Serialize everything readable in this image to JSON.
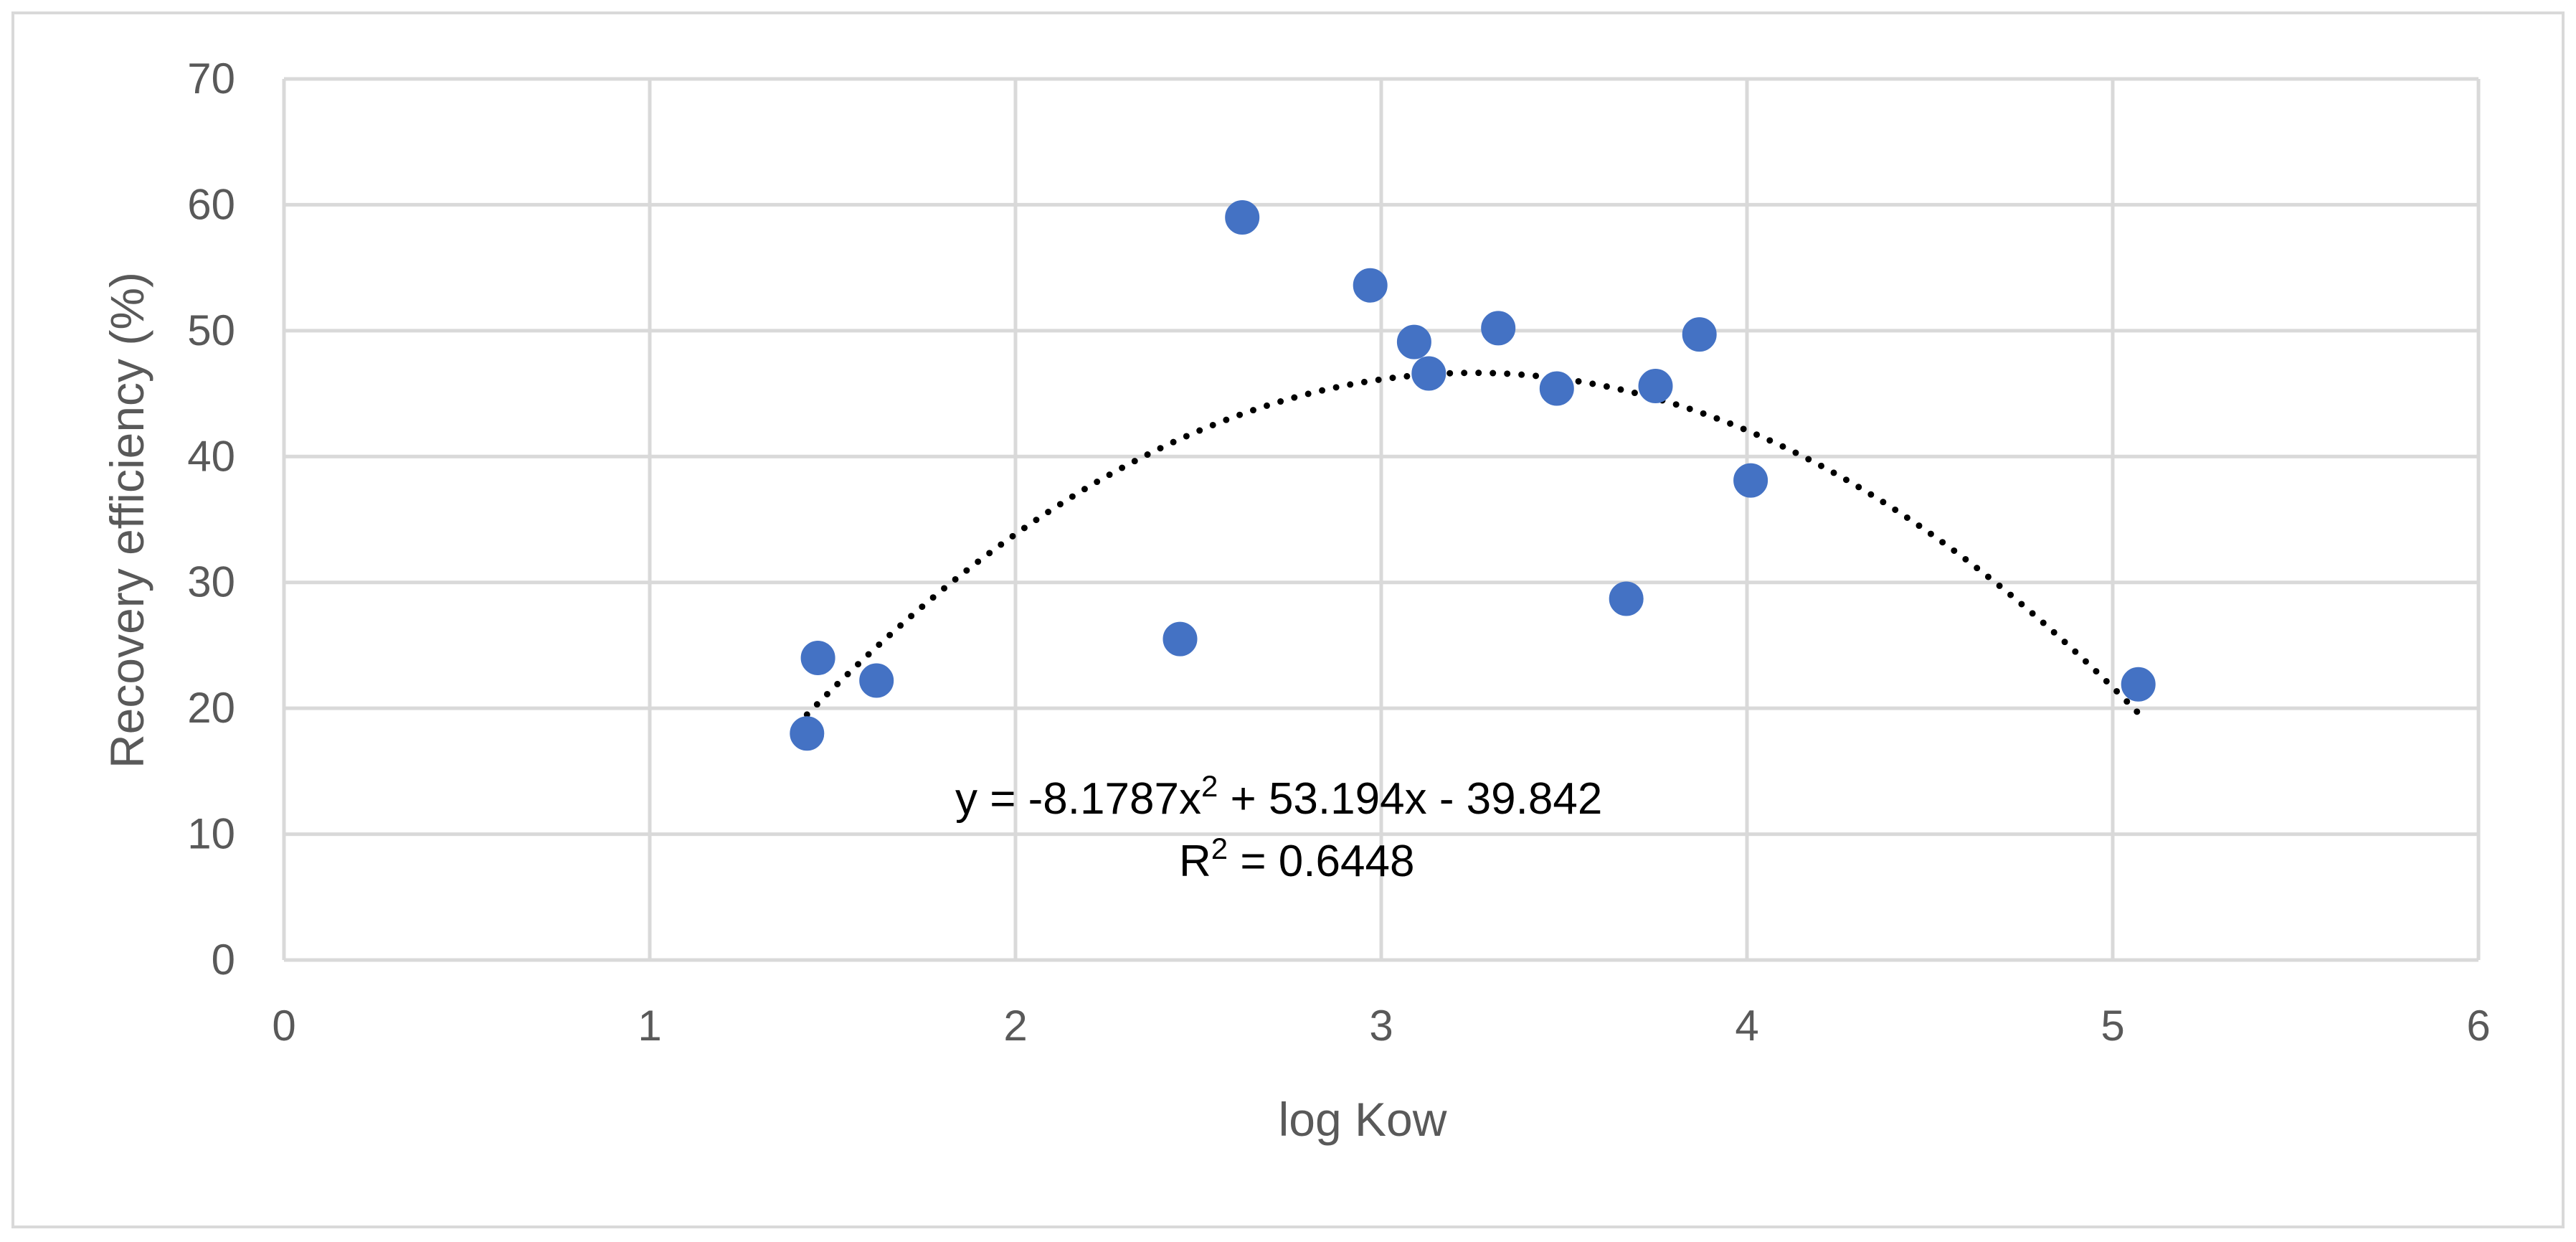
{
  "chart_data": {
    "type": "scatter",
    "title": "",
    "xlabel": "log Kow",
    "ylabel": "Recovery efficiency (%)",
    "xlim": [
      0,
      6
    ],
    "ylim": [
      0,
      70
    ],
    "xticks": [
      0,
      1,
      2,
      3,
      4,
      5,
      6
    ],
    "yticks": [
      0,
      10,
      20,
      30,
      40,
      50,
      60,
      70
    ],
    "xtick_labels": [
      "0",
      "1",
      "2",
      "3",
      "4",
      "5",
      "6"
    ],
    "ytick_labels": [
      "0",
      "10",
      "20",
      "30",
      "40",
      "50",
      "60",
      "70"
    ],
    "grid": true,
    "legend": "none",
    "marker_color": "#4472C4",
    "trendline_color": "#000000",
    "gridline_color": "#d9d9d9",
    "series": [
      {
        "points": [
          {
            "x": 1.43,
            "y": 18.0
          },
          {
            "x": 1.46,
            "y": 24.0
          },
          {
            "x": 1.62,
            "y": 22.2
          },
          {
            "x": 2.45,
            "y": 25.5
          },
          {
            "x": 2.62,
            "y": 59.0
          },
          {
            "x": 2.97,
            "y": 53.6
          },
          {
            "x": 3.09,
            "y": 49.1
          },
          {
            "x": 3.13,
            "y": 46.6
          },
          {
            "x": 3.32,
            "y": 50.2
          },
          {
            "x": 3.48,
            "y": 45.4
          },
          {
            "x": 3.67,
            "y": 28.7
          },
          {
            "x": 3.75,
            "y": 45.6
          },
          {
            "x": 3.87,
            "y": 49.7
          },
          {
            "x": 4.01,
            "y": 38.1
          },
          {
            "x": 5.07,
            "y": 21.9
          }
        ]
      }
    ],
    "trendline": {
      "type": "polynomial",
      "order": 2,
      "a": -8.1787,
      "b": 53.194,
      "c": -39.842,
      "x_range": [
        1.43,
        5.07
      ],
      "equation_prefix": "y = -8.1787x",
      "equation_exponent": "2",
      "equation_suffix": " + 53.194x - 39.842",
      "r2_prefix": "R",
      "r2_exponent": "2",
      "r2_suffix": " = 0.6448"
    }
  }
}
